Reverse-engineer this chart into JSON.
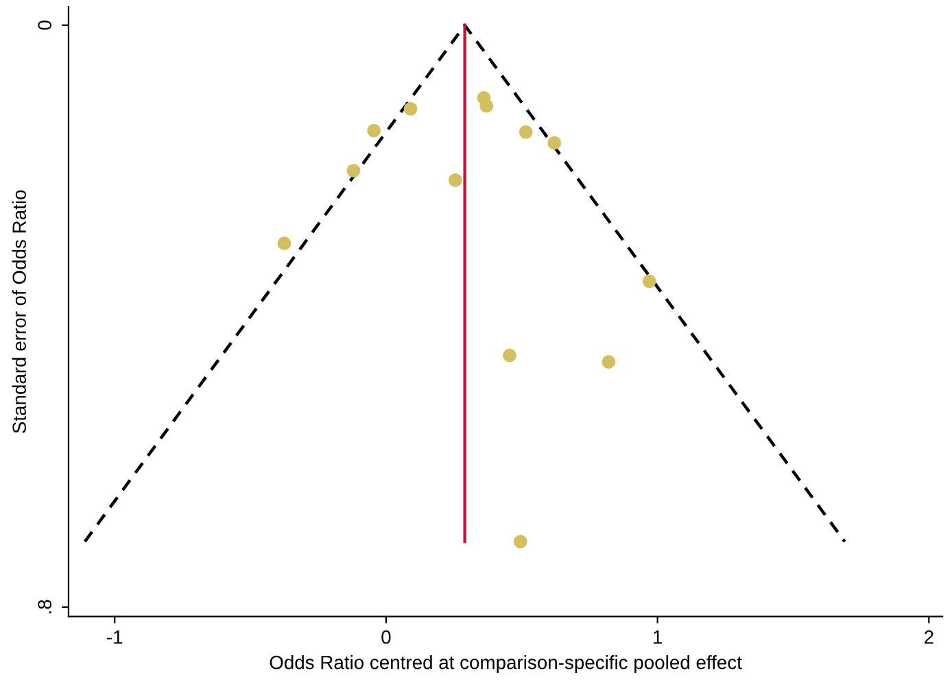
{
  "chart_data": {
    "type": "scatter",
    "xlabel": "Odds Ratio centred at comparison-specific pooled effect",
    "ylabel": "Standard error of Odds Ratio",
    "xlim": [
      -1.17,
      2.05
    ],
    "xticks": [
      -1,
      0,
      1,
      2
    ],
    "ylim": [
      0.813,
      -0.025
    ],
    "yticks": [
      {
        "value": 0,
        "label": "0"
      },
      {
        "value": 0.8,
        "label": ".8"
      }
    ],
    "grid": false,
    "legend": false,
    "series": [
      {
        "type": "line",
        "color": "#000000",
        "line_style": "dashed",
        "x": [
          -1.11,
          0.29,
          1.69
        ],
        "values": [
          0.71,
          0,
          0.71
        ]
      },
      {
        "type": "line",
        "color": "#c0143c",
        "line_style": "solid",
        "x": [
          0.29,
          0.29
        ],
        "values": [
          0,
          0.71
        ]
      },
      {
        "color": "#d4bf5e",
        "marker": "circle",
        "x": [
          -0.375,
          -0.12,
          -0.045,
          0.09,
          0.255,
          0.36,
          0.37,
          0.515,
          0.62,
          0.97,
          0.455,
          0.82,
          0.495
        ],
        "values": [
          0.3,
          0.2,
          0.145,
          0.115,
          0.213,
          0.1,
          0.111,
          0.147,
          0.162,
          0.352,
          0.454,
          0.463,
          0.71
        ]
      }
    ]
  }
}
